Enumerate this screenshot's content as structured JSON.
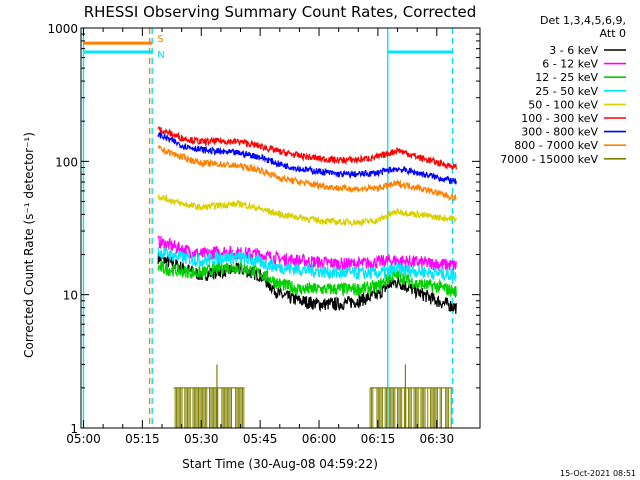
{
  "chart_data": {
    "type": "line",
    "title": "RHESSI Observing Summary Count Rates, Corrected",
    "ylabel": "Corrected Count Rate (s⁻¹ detector⁻¹)",
    "xlabel": "Start Time (30-Aug-08 04:59:22)",
    "timestamp": "15-Oct-2021 08:51",
    "y_scale": "log",
    "ylim": [
      1,
      1000
    ],
    "xlim": [
      "04:59:22",
      "06:41:00"
    ],
    "x_ticks": [
      "05:00",
      "05:15",
      "05:30",
      "05:45",
      "06:00",
      "06:15",
      "06:30"
    ],
    "y_ticks": [
      "1",
      "10",
      "100",
      "1000"
    ],
    "legend_title": [
      "Det 1,3,4,5,6,9,",
      "Att 0"
    ],
    "legend_position": "right",
    "flags": [
      {
        "label": "S",
        "color": "#ff8000",
        "start": "05:00",
        "end": "05:17:30",
        "y": 770
      },
      {
        "label": "N",
        "color": "#00e5ff",
        "start": "05:00",
        "end": "05:17:30",
        "y": 660
      },
      {
        "label": "",
        "color": "#00e5ff",
        "start": "06:17:30",
        "end": "06:34",
        "y": 660
      }
    ],
    "vlines": [
      {
        "time": "05:00",
        "style": "solid",
        "color": "#00e5ff"
      },
      {
        "time": "05:16:50",
        "style": "dashed",
        "color": "#ff8000"
      },
      {
        "time": "05:17:30",
        "style": "dashed",
        "color": "#00e5ff"
      },
      {
        "time": "06:17:30",
        "style": "solid",
        "color": "#00e5ff"
      },
      {
        "time": "06:34",
        "style": "dashed",
        "color": "#00e5ff"
      }
    ],
    "series": [
      {
        "name": "3 - 6 keV",
        "color": "#000000",
        "points": [
          [
            "05:19",
            19
          ],
          [
            "05:25",
            16
          ],
          [
            "05:30",
            14
          ],
          [
            "05:35",
            15
          ],
          [
            "05:40",
            15.5
          ],
          [
            "05:45",
            14
          ],
          [
            "05:50",
            10
          ],
          [
            "05:55",
            9
          ],
          [
            "06:00",
            8.5
          ],
          [
            "06:05",
            8.5
          ],
          [
            "06:10",
            9
          ],
          [
            "06:15",
            10
          ],
          [
            "06:18",
            12
          ],
          [
            "06:20",
            12.5
          ],
          [
            "06:25",
            10.5
          ],
          [
            "06:30",
            9
          ],
          [
            "06:35",
            8
          ]
        ]
      },
      {
        "name": "6 - 12 keV",
        "color": "#ff00ff",
        "points": [
          [
            "05:19",
            25
          ],
          [
            "05:25",
            22
          ],
          [
            "05:30",
            20
          ],
          [
            "05:35",
            21
          ],
          [
            "05:40",
            20.5
          ],
          [
            "05:45",
            20
          ],
          [
            "05:50",
            18.5
          ],
          [
            "05:55",
            18
          ],
          [
            "06:00",
            17.5
          ],
          [
            "06:05",
            17
          ],
          [
            "06:10",
            17
          ],
          [
            "06:15",
            17.5
          ],
          [
            "06:18",
            18
          ],
          [
            "06:20",
            18
          ],
          [
            "06:25",
            17.5
          ],
          [
            "06:30",
            17
          ],
          [
            "06:35",
            16.5
          ]
        ]
      },
      {
        "name": "12 - 25 keV",
        "color": "#00d000",
        "points": [
          [
            "05:19",
            16
          ],
          [
            "05:25",
            15
          ],
          [
            "05:30",
            14.5
          ],
          [
            "05:35",
            16
          ],
          [
            "05:40",
            16
          ],
          [
            "05:45",
            14.5
          ],
          [
            "05:50",
            12
          ],
          [
            "05:55",
            11
          ],
          [
            "06:00",
            11
          ],
          [
            "06:05",
            11
          ],
          [
            "06:10",
            11
          ],
          [
            "06:15",
            11.5
          ],
          [
            "06:18",
            13.5
          ],
          [
            "06:20",
            14
          ],
          [
            "06:25",
            12
          ],
          [
            "06:30",
            11.5
          ],
          [
            "06:35",
            10.5
          ]
        ]
      },
      {
        "name": "25 - 50 keV",
        "color": "#00e5ff",
        "points": [
          [
            "05:19",
            21
          ],
          [
            "05:25",
            19
          ],
          [
            "05:30",
            18
          ],
          [
            "05:35",
            19
          ],
          [
            "05:40",
            19
          ],
          [
            "05:45",
            17.5
          ],
          [
            "05:50",
            16
          ],
          [
            "05:55",
            15.5
          ],
          [
            "06:00",
            15
          ],
          [
            "06:05",
            14.5
          ],
          [
            "06:10",
            14.5
          ],
          [
            "06:15",
            14.5
          ],
          [
            "06:18",
            15
          ],
          [
            "06:20",
            15.5
          ],
          [
            "06:25",
            15
          ],
          [
            "06:30",
            14.5
          ],
          [
            "06:35",
            14
          ]
        ]
      },
      {
        "name": "50 - 100 keV",
        "color": "#d8d000",
        "points": [
          [
            "05:19",
            55
          ],
          [
            "05:25",
            48
          ],
          [
            "05:30",
            45
          ],
          [
            "05:35",
            47
          ],
          [
            "05:40",
            48
          ],
          [
            "05:45",
            44
          ],
          [
            "05:50",
            40
          ],
          [
            "05:55",
            38
          ],
          [
            "06:00",
            36
          ],
          [
            "06:05",
            35
          ],
          [
            "06:10",
            35
          ],
          [
            "06:15",
            36
          ],
          [
            "06:18",
            40
          ],
          [
            "06:20",
            42
          ],
          [
            "06:25",
            40
          ],
          [
            "06:30",
            38
          ],
          [
            "06:35",
            37
          ]
        ]
      },
      {
        "name": "100 - 300 keV",
        "color": "#ff0000",
        "points": [
          [
            "05:19",
            175
          ],
          [
            "05:25",
            150
          ],
          [
            "05:30",
            140
          ],
          [
            "05:35",
            142
          ],
          [
            "05:40",
            140
          ],
          [
            "05:45",
            130
          ],
          [
            "05:50",
            118
          ],
          [
            "05:55",
            110
          ],
          [
            "06:00",
            105
          ],
          [
            "06:05",
            102
          ],
          [
            "06:10",
            103
          ],
          [
            "06:15",
            108
          ],
          [
            "06:18",
            115
          ],
          [
            "06:20",
            122
          ],
          [
            "06:25",
            108
          ],
          [
            "06:30",
            98
          ],
          [
            "06:35",
            90
          ]
        ]
      },
      {
        "name": "300 - 800 keV",
        "color": "#0000ff",
        "points": [
          [
            "05:19",
            160
          ],
          [
            "05:25",
            132
          ],
          [
            "05:30",
            122
          ],
          [
            "05:35",
            118
          ],
          [
            "05:40",
            115
          ],
          [
            "05:45",
            108
          ],
          [
            "05:50",
            95
          ],
          [
            "05:55",
            88
          ],
          [
            "06:00",
            84
          ],
          [
            "06:05",
            80
          ],
          [
            "06:10",
            80
          ],
          [
            "06:15",
            82
          ],
          [
            "06:18",
            86
          ],
          [
            "06:20",
            88
          ],
          [
            "06:25",
            82
          ],
          [
            "06:30",
            76
          ],
          [
            "06:35",
            70
          ]
        ]
      },
      {
        "name": "800 - 7000 keV",
        "color": "#ff8000",
        "points": [
          [
            "05:19",
            125
          ],
          [
            "05:25",
            108
          ],
          [
            "05:30",
            97
          ],
          [
            "05:35",
            95
          ],
          [
            "05:40",
            92
          ],
          [
            "05:45",
            86
          ],
          [
            "05:50",
            75
          ],
          [
            "05:55",
            70
          ],
          [
            "06:00",
            66
          ],
          [
            "06:05",
            63
          ],
          [
            "06:10",
            62
          ],
          [
            "06:15",
            63
          ],
          [
            "06:18",
            66
          ],
          [
            "06:20",
            68
          ],
          [
            "06:25",
            64
          ],
          [
            "06:30",
            58
          ],
          [
            "06:35",
            53
          ]
        ]
      },
      {
        "name": "7000 - 15000 keV",
        "color": "#808000",
        "segments": [
          {
            "start": "05:23",
            "end": "05:41",
            "low": 1,
            "high": 2
          },
          {
            "start": "06:13",
            "end": "06:34",
            "low": 1,
            "high": 2
          }
        ],
        "spikes": [
          [
            "05:34",
            3
          ],
          [
            "06:22",
            3
          ]
        ]
      }
    ]
  }
}
